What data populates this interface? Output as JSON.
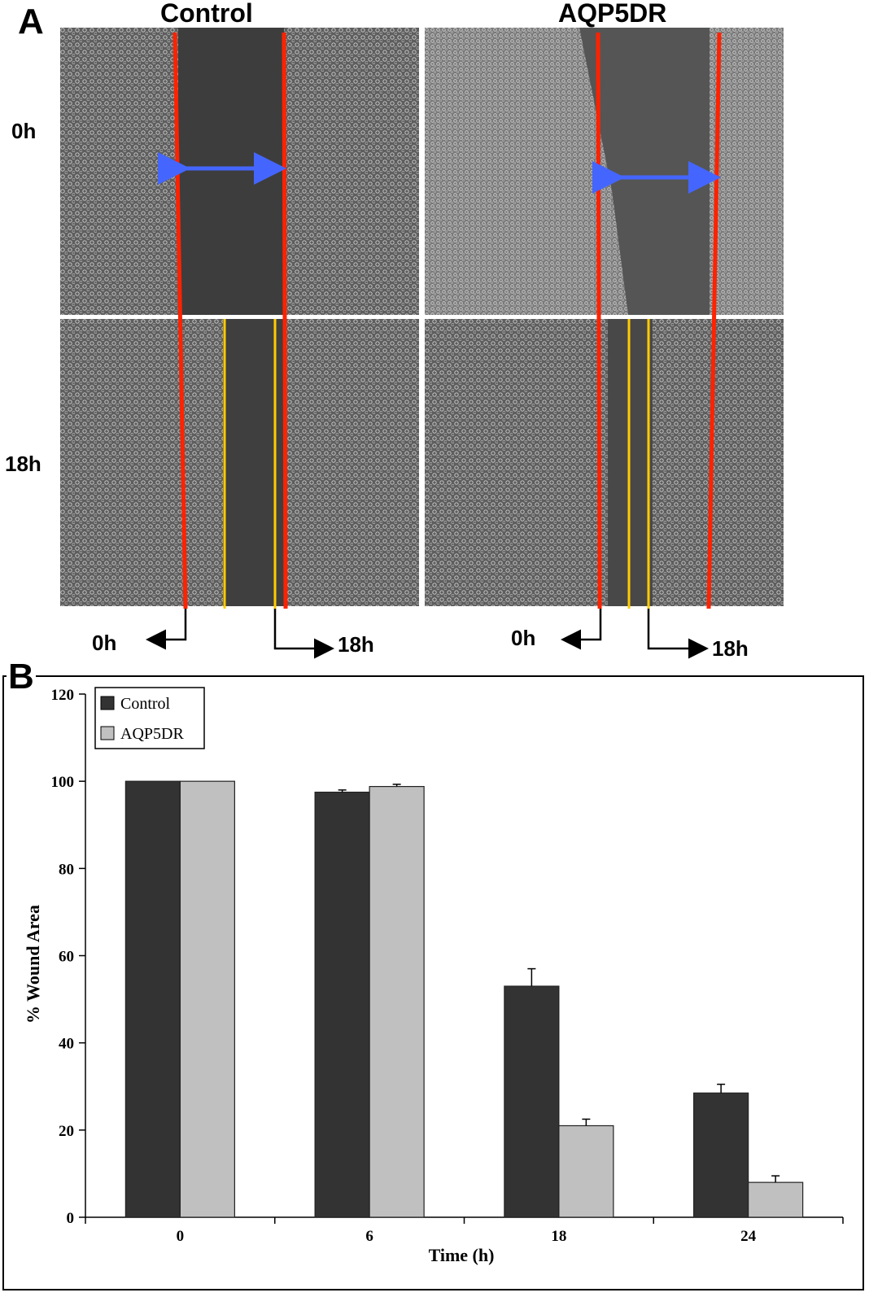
{
  "panel_a": {
    "letter": "A",
    "columns": [
      "Control",
      "AQP5DR"
    ],
    "rows": [
      "0h",
      "18h"
    ],
    "arrow_labels": {
      "control_left": "0h",
      "control_right": "18h",
      "aqp5dr_left": "0h",
      "aqp5dr_right": "18h"
    },
    "colors": {
      "edge_0h": "#ff2200",
      "edge_18h": "#ffcc00",
      "gap_arrow": "#4466ff"
    }
  },
  "panel_b": {
    "letter": "B"
  },
  "chart_data": {
    "type": "bar",
    "categories": [
      "0",
      "6",
      "18",
      "24"
    ],
    "series": [
      {
        "name": "Control",
        "values": [
          100,
          97.5,
          53,
          28.5
        ],
        "errors": [
          0,
          0.5,
          4,
          2
        ],
        "color": "#333333"
      },
      {
        "name": "AQP5DR",
        "values": [
          100,
          98.8,
          21,
          8
        ],
        "errors": [
          0,
          0.5,
          1.5,
          1.5
        ],
        "color": "#c0c0c0"
      }
    ],
    "xlabel": "Time (h)",
    "ylabel": "% Wound Area",
    "ylim": [
      0,
      120
    ],
    "yticks": [
      0,
      20,
      40,
      60,
      80,
      100,
      120
    ],
    "legend_position": "top-left",
    "grid": false
  }
}
